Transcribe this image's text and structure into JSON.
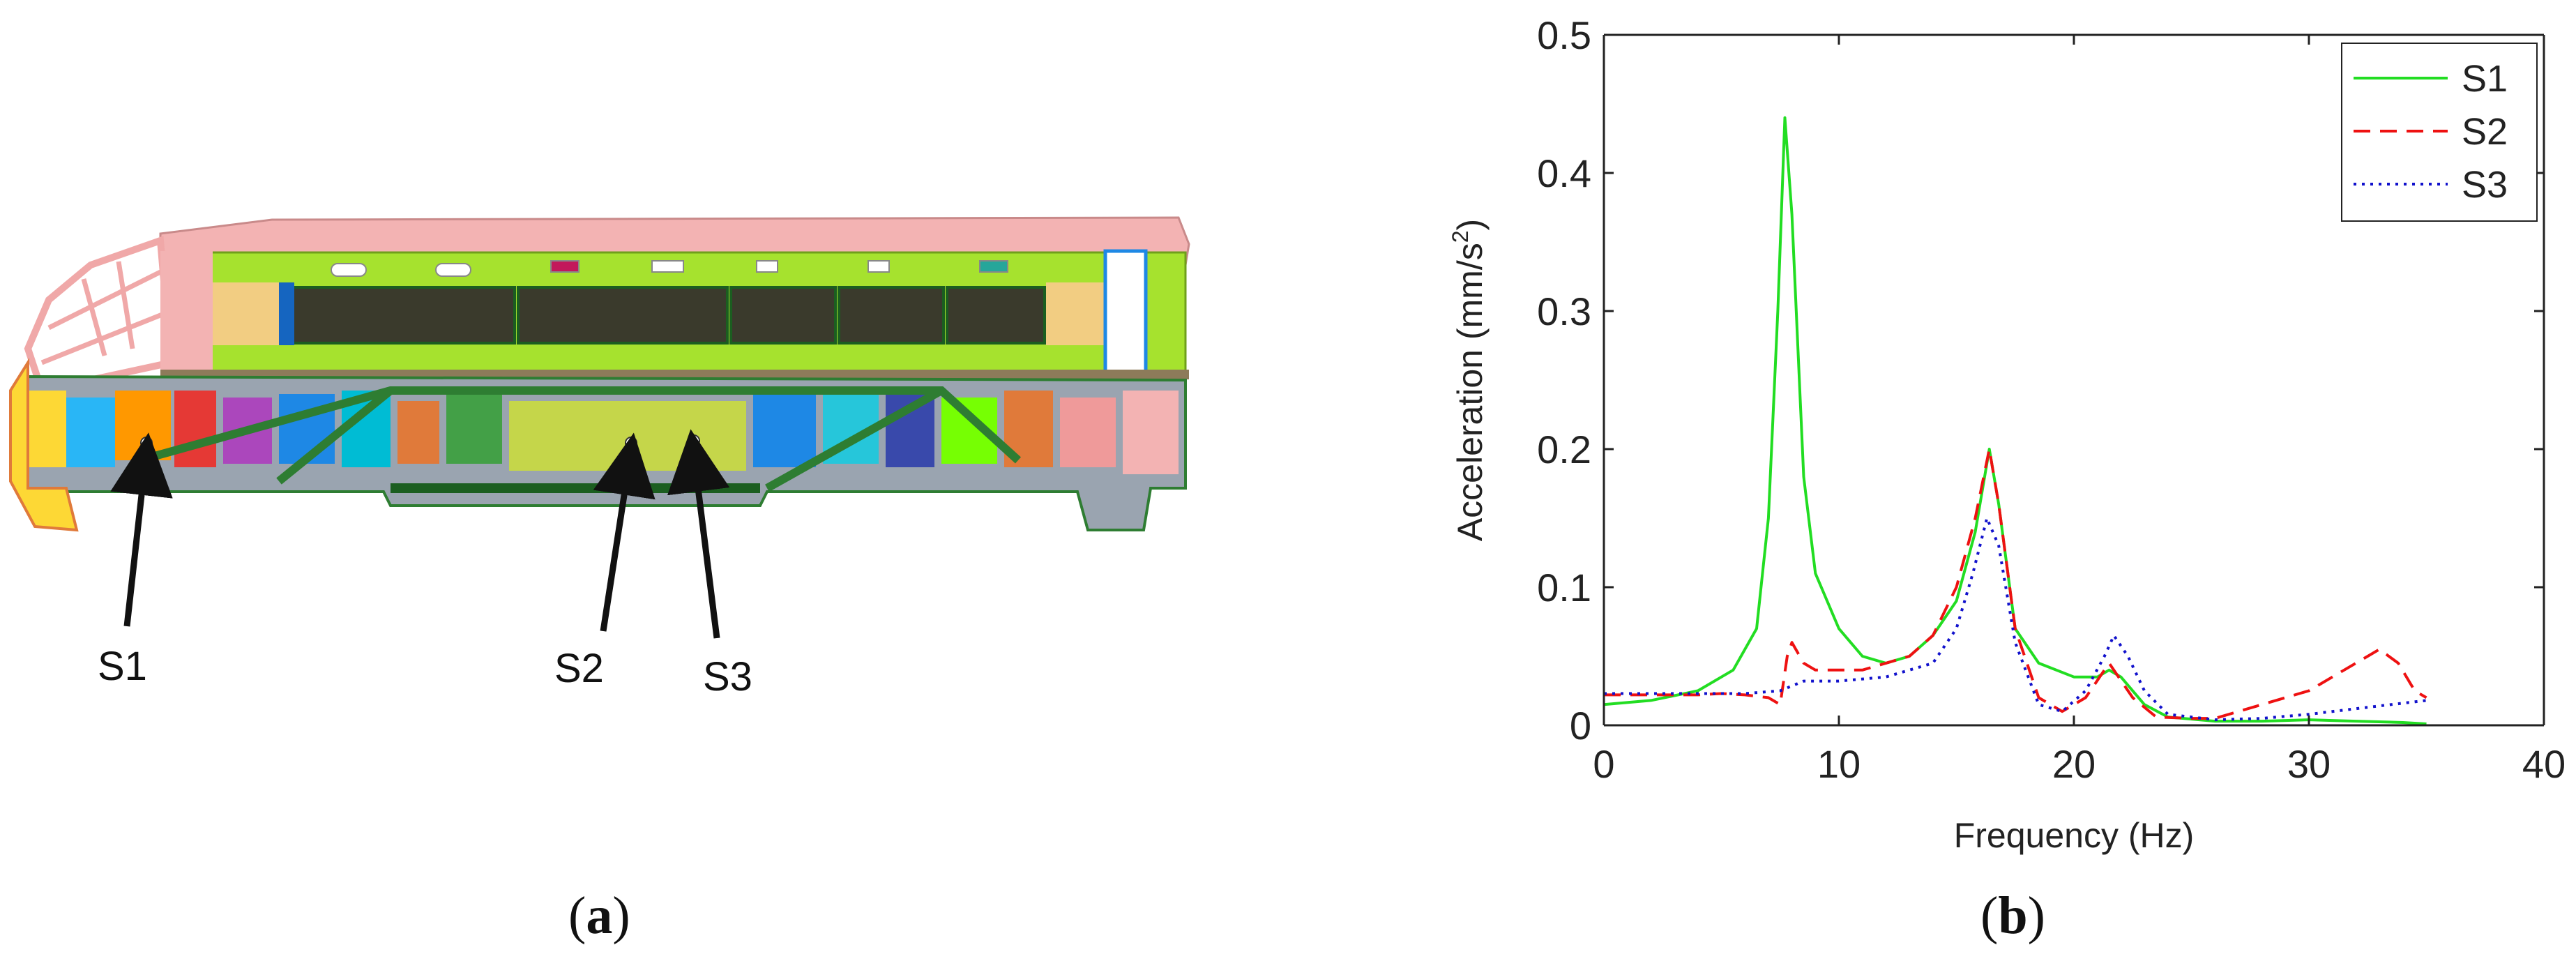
{
  "panel_a": {
    "caption_open": "(",
    "caption_letter": "a",
    "caption_close": ")",
    "sensors": [
      {
        "label": "S1"
      },
      {
        "label": "S2"
      },
      {
        "label": "S3"
      }
    ],
    "colors": {
      "roof": "#f3b3b3",
      "body": "#a6e22e",
      "window": "#3a3a2c",
      "frame": "#2e7d32",
      "accent_blue": "#1e88e5",
      "accent_orange": "#e07a3a"
    }
  },
  "panel_b": {
    "caption_open": "(",
    "caption_letter": "b",
    "caption_close": ")"
  },
  "chart_data": {
    "type": "line",
    "title": "",
    "xlabel": "Frequency (Hz)",
    "ylabel_main": "Acceleration (mm/s",
    "ylabel_sup": "2",
    "ylabel_end": ")",
    "xlim": [
      0,
      40
    ],
    "ylim": [
      0,
      0.5
    ],
    "xticks": [
      "0",
      "10",
      "20",
      "30",
      "40"
    ],
    "yticks": [
      "0",
      "0.1",
      "0.2",
      "0.3",
      "0.4",
      "0.5"
    ],
    "grid": false,
    "legend_position": "top-right",
    "series": [
      {
        "name": "S1",
        "color": "#22dd22",
        "dash": "solid",
        "points": [
          [
            0,
            0.015
          ],
          [
            2,
            0.018
          ],
          [
            4,
            0.025
          ],
          [
            5.5,
            0.04
          ],
          [
            6.5,
            0.07
          ],
          [
            7,
            0.15
          ],
          [
            7.4,
            0.3
          ],
          [
            7.7,
            0.44
          ],
          [
            8,
            0.37
          ],
          [
            8.5,
            0.18
          ],
          [
            9,
            0.11
          ],
          [
            10,
            0.07
          ],
          [
            11,
            0.05
          ],
          [
            12,
            0.045
          ],
          [
            13,
            0.05
          ],
          [
            14,
            0.065
          ],
          [
            15,
            0.09
          ],
          [
            15.8,
            0.14
          ],
          [
            16.4,
            0.2
          ],
          [
            16.8,
            0.16
          ],
          [
            17.5,
            0.07
          ],
          [
            18.5,
            0.045
          ],
          [
            20,
            0.035
          ],
          [
            21,
            0.035
          ],
          [
            21.5,
            0.04
          ],
          [
            22,
            0.035
          ],
          [
            23,
            0.015
          ],
          [
            24,
            0.006
          ],
          [
            26,
            0.003
          ],
          [
            28,
            0.003
          ],
          [
            30,
            0.004
          ],
          [
            32,
            0.003
          ],
          [
            34,
            0.002
          ],
          [
            35,
            0.001
          ]
        ]
      },
      {
        "name": "S2",
        "color": "#ee1111",
        "dash": "24,14",
        "points": [
          [
            0,
            0.022
          ],
          [
            2,
            0.022
          ],
          [
            4,
            0.022
          ],
          [
            5,
            0.023
          ],
          [
            6,
            0.022
          ],
          [
            7,
            0.02
          ],
          [
            7.5,
            0.015
          ],
          [
            7.8,
            0.05
          ],
          [
            8,
            0.06
          ],
          [
            8.5,
            0.045
          ],
          [
            9,
            0.04
          ],
          [
            10,
            0.04
          ],
          [
            11,
            0.04
          ],
          [
            12,
            0.045
          ],
          [
            13,
            0.05
          ],
          [
            14,
            0.065
          ],
          [
            15,
            0.1
          ],
          [
            15.8,
            0.15
          ],
          [
            16.4,
            0.2
          ],
          [
            16.8,
            0.16
          ],
          [
            17.5,
            0.07
          ],
          [
            18.5,
            0.02
          ],
          [
            19.5,
            0.01
          ],
          [
            20.5,
            0.02
          ],
          [
            21.5,
            0.045
          ],
          [
            22.5,
            0.02
          ],
          [
            23.5,
            0.006
          ],
          [
            25,
            0.005
          ],
          [
            26,
            0.005
          ],
          [
            27,
            0.01
          ],
          [
            28,
            0.015
          ],
          [
            30,
            0.025
          ],
          [
            31.5,
            0.04
          ],
          [
            32.5,
            0.05
          ],
          [
            33,
            0.055
          ],
          [
            33.8,
            0.045
          ],
          [
            34.5,
            0.025
          ],
          [
            35,
            0.02
          ]
        ]
      },
      {
        "name": "S3",
        "color": "#1111cc",
        "dash": "4,8",
        "points": [
          [
            0,
            0.023
          ],
          [
            2,
            0.023
          ],
          [
            4,
            0.023
          ],
          [
            6,
            0.023
          ],
          [
            7.5,
            0.025
          ],
          [
            8.5,
            0.032
          ],
          [
            10,
            0.032
          ],
          [
            12,
            0.035
          ],
          [
            14,
            0.045
          ],
          [
            15,
            0.07
          ],
          [
            15.7,
            0.11
          ],
          [
            16.3,
            0.15
          ],
          [
            16.8,
            0.13
          ],
          [
            17.5,
            0.06
          ],
          [
            18.5,
            0.015
          ],
          [
            19.5,
            0.01
          ],
          [
            20.5,
            0.025
          ],
          [
            21.3,
            0.05
          ],
          [
            21.7,
            0.065
          ],
          [
            22.3,
            0.05
          ],
          [
            23,
            0.025
          ],
          [
            24,
            0.008
          ],
          [
            26,
            0.004
          ],
          [
            28,
            0.005
          ],
          [
            30,
            0.008
          ],
          [
            32,
            0.012
          ],
          [
            34,
            0.016
          ],
          [
            35,
            0.018
          ]
        ]
      }
    ]
  }
}
